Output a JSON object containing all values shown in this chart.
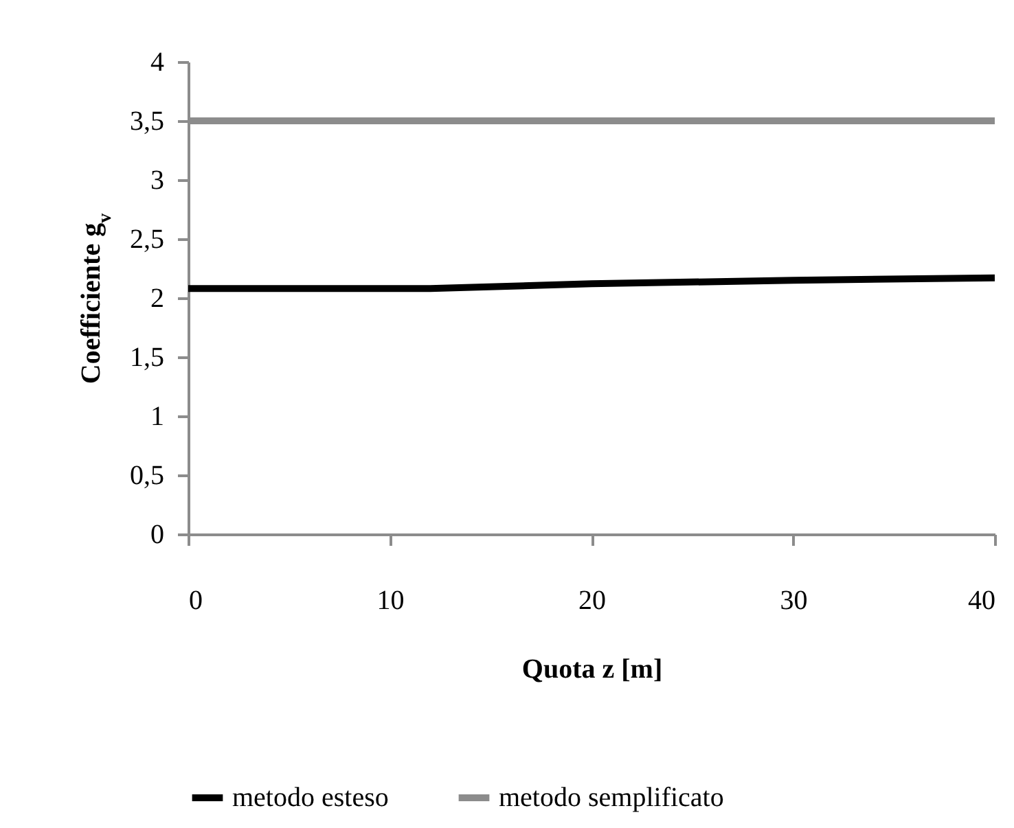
{
  "chart_data": {
    "type": "line",
    "xlabel": "Quota z [m]",
    "ylabel": "Coefficiente g$_{v}$",
    "x": [
      0,
      12,
      20,
      30,
      40
    ],
    "series": [
      {
        "name": "metodo esteso",
        "color": "#000000",
        "values": [
          2.08,
          2.08,
          2.12,
          2.15,
          2.17
        ]
      },
      {
        "name": "metodo semplificato",
        "color": "#8c8c8c",
        "values": [
          3.5,
          3.5,
          3.5,
          3.5,
          3.5
        ]
      }
    ],
    "xlim": [
      0,
      40
    ],
    "xticks": [
      0,
      10,
      20,
      30,
      40
    ],
    "ylim": [
      0,
      4
    ],
    "yticks": [
      0,
      {
        "value": 0.5,
        "label": "0,5"
      },
      1,
      {
        "value": 1.5,
        "label": "1,5"
      },
      2,
      {
        "value": 2.5,
        "label": "2,5"
      },
      3,
      {
        "value": 3.5,
        "label": "3,5"
      },
      4
    ],
    "grid": false,
    "legend": "bottom",
    "line_style": "solid",
    "marker": "none"
  }
}
